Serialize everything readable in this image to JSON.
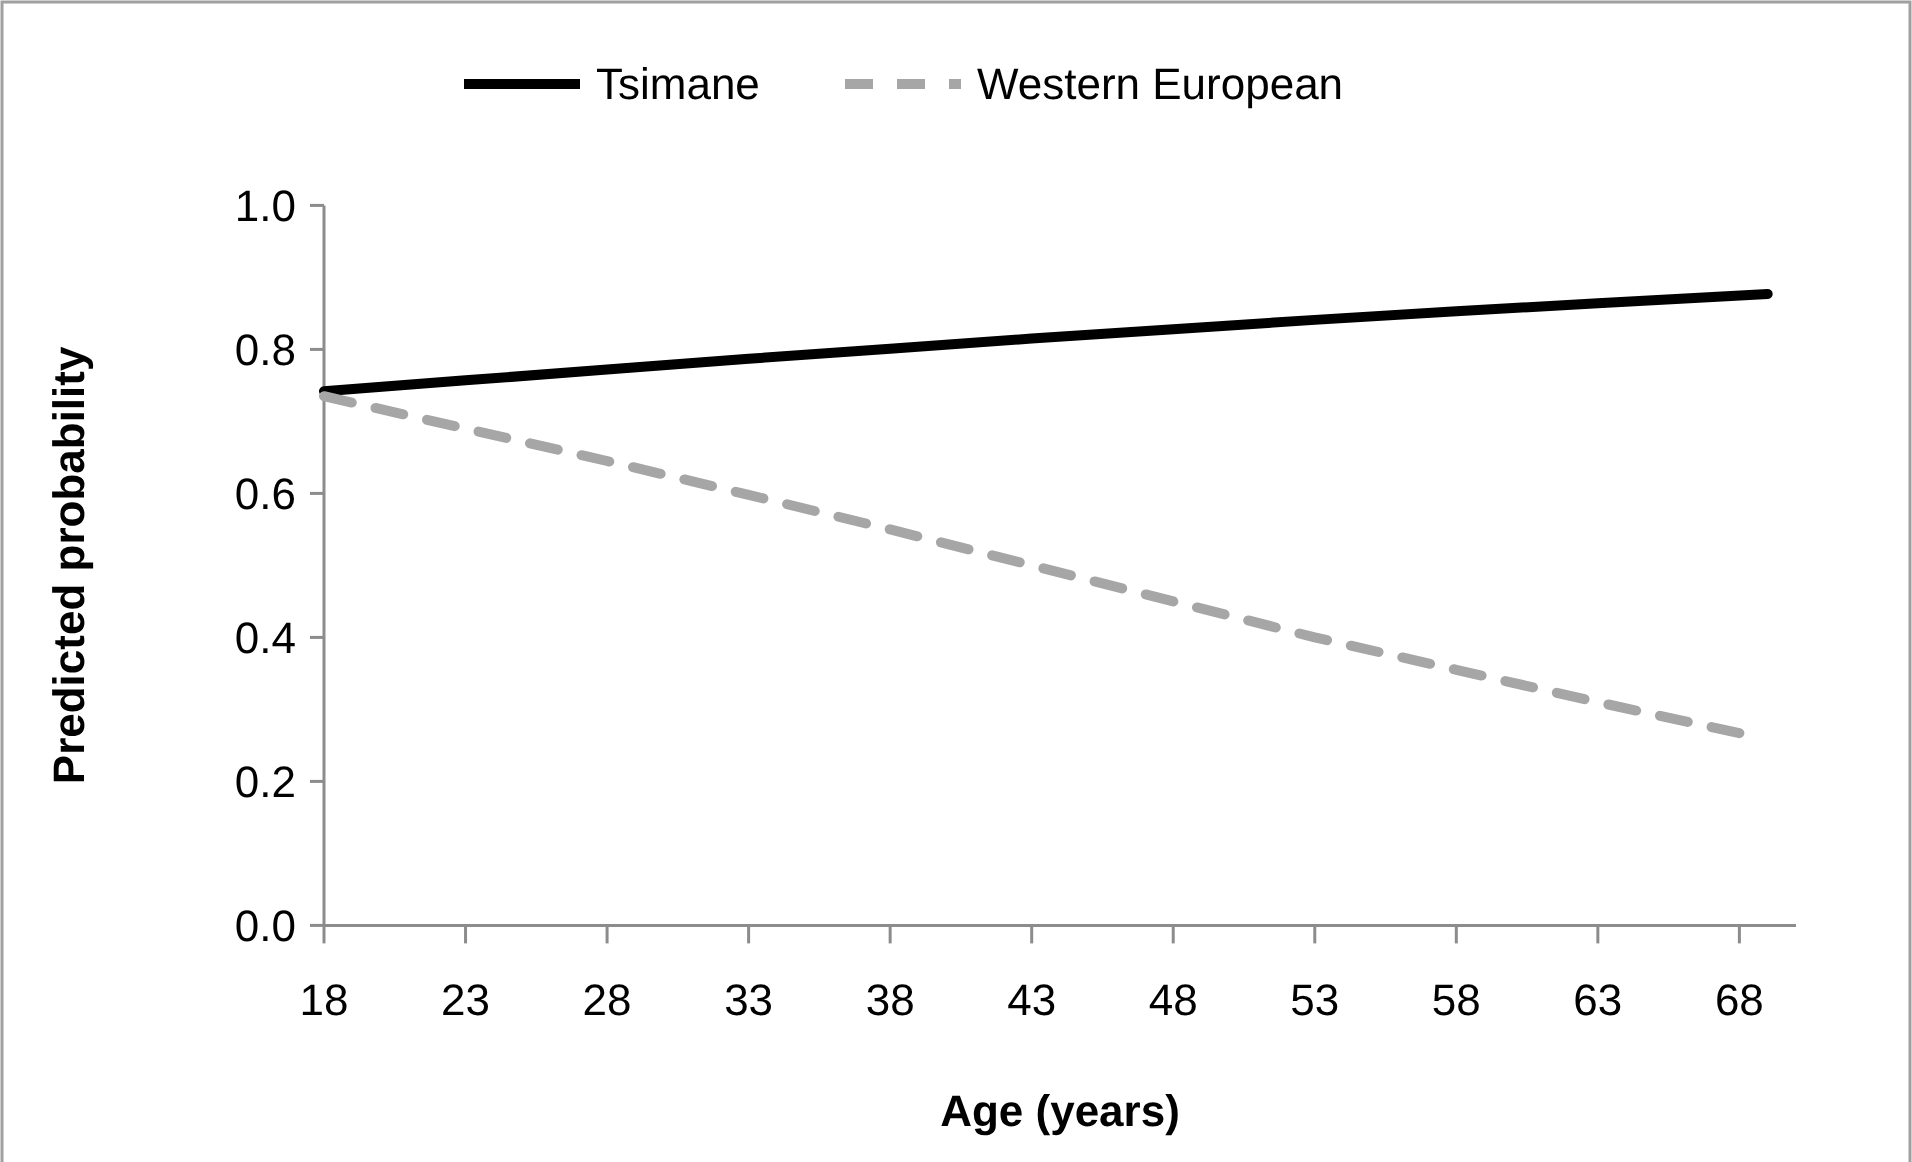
{
  "chart_data": {
    "type": "line",
    "xlabel": "Age (years)",
    "ylabel": "Predicted probability",
    "xlim": [
      18,
      70
    ],
    "xticks": [
      18,
      23,
      28,
      33,
      38,
      43,
      48,
      53,
      58,
      63,
      68
    ],
    "ylim": [
      0,
      1
    ],
    "yticks": [
      {
        "value": 0,
        "label": "0.0"
      },
      {
        "value": 0.2,
        "label": "0.2"
      },
      {
        "value": 0.4,
        "label": "0.4"
      },
      {
        "value": 0.6,
        "label": "0.6"
      },
      {
        "value": 0.8,
        "label": "0.8"
      },
      {
        "value": 1,
        "label": "1.0"
      }
    ],
    "grid": false,
    "legend": "top",
    "marker": "none",
    "series": [
      {
        "name": "Tsimane",
        "color": "#000000",
        "line_style": "solid",
        "x": [
          18,
          23,
          28,
          33,
          38,
          43,
          48,
          53,
          58,
          63,
          69
        ],
        "values": [
          0.742,
          0.757,
          0.772,
          0.787,
          0.801,
          0.815,
          0.828,
          0.841,
          0.853,
          0.864,
          0.877
        ]
      },
      {
        "name": "Western European",
        "color": "#a6a6a6",
        "line_style": "dashed",
        "x": [
          18,
          23,
          28,
          33,
          38,
          43,
          48,
          53,
          58,
          63,
          68
        ],
        "values": [
          0.735,
          0.69,
          0.645,
          0.598,
          0.55,
          0.5,
          0.45,
          0.4,
          0.355,
          0.31,
          0.267
        ]
      }
    ]
  }
}
